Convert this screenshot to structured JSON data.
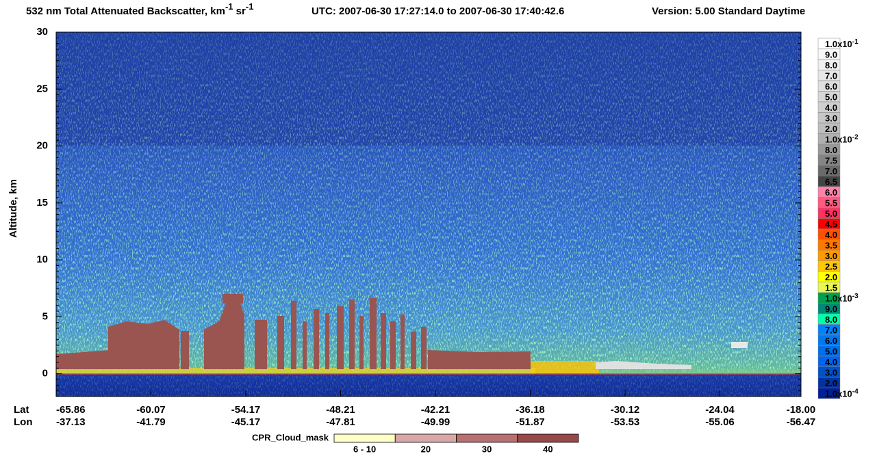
{
  "chart_data": {
    "type": "heatmap",
    "title_parts": [
      "532 nm Total Attenuated Backscatter, km",
      "-1",
      " sr",
      "-1",
      "UTC:  2007-06-30 17:27:14.0  to  2007-06-30 17:40:42.6",
      "Version: 5.00  Standard  Daytime"
    ],
    "y_label": "Altitude, km",
    "ylim": [
      -2,
      30
    ],
    "yticks": [
      0,
      5,
      10,
      15,
      20,
      25,
      30
    ],
    "x_rows": [
      {
        "name": "Lat",
        "labels": [
          "-65.86",
          "-60.07",
          "-54.17",
          "-48.21",
          "-42.21",
          "-36.18",
          "-30.12",
          "-24.04",
          "-18.00"
        ]
      },
      {
        "name": "Lon",
        "labels": [
          "-37.13",
          "-41.79",
          "-45.17",
          "-47.81",
          "-49.99",
          "-51.87",
          "-53.53",
          "-55.06",
          "-56.47"
        ]
      }
    ],
    "colorbar": [
      {
        "label": "1.0x10",
        "exp": "-1",
        "color": "#ffffff"
      },
      {
        "label": "9.0",
        "color": "#f7f7f7"
      },
      {
        "label": "8.0",
        "color": "#efefef"
      },
      {
        "label": "7.0",
        "color": "#e7e7e7"
      },
      {
        "label": "6.0",
        "color": "#dfdfdf"
      },
      {
        "label": "5.0",
        "color": "#d7d7d7"
      },
      {
        "label": "4.0",
        "color": "#cfcfcf"
      },
      {
        "label": "3.0",
        "color": "#c7c7c7"
      },
      {
        "label": "2.0",
        "color": "#bdbdbd"
      },
      {
        "label": "1.0x10",
        "exp": "-2",
        "color": "#b0b0b0"
      },
      {
        "label": "8.0",
        "color": "#9a9a9a"
      },
      {
        "label": "7.5",
        "color": "#858585"
      },
      {
        "label": "7.0",
        "color": "#6a6a6a"
      },
      {
        "label": "6.5",
        "color": "#444444"
      },
      {
        "label": "6.0",
        "color": "#ff82a8"
      },
      {
        "label": "5.5",
        "color": "#ff5a82"
      },
      {
        "label": "5.0",
        "color": "#ff3262"
      },
      {
        "label": "4.5",
        "color": "#ff0000"
      },
      {
        "label": "4.0",
        "color": "#ff5000"
      },
      {
        "label": "3.5",
        "color": "#ff7800"
      },
      {
        "label": "3.0",
        "color": "#ff9a00"
      },
      {
        "label": "2.5",
        "color": "#ffc800"
      },
      {
        "label": "2.0",
        "color": "#ffff00"
      },
      {
        "label": "1.5",
        "color": "#e8f850"
      },
      {
        "label": "1.0x10",
        "exp": "-3",
        "color": "#00a050"
      },
      {
        "label": "9.0",
        "color": "#008878"
      },
      {
        "label": "8.0",
        "color": "#00ffa8"
      },
      {
        "label": "7.0",
        "color": "#0082ff"
      },
      {
        "label": "6.0",
        "color": "#0078f0"
      },
      {
        "label": "5.0",
        "color": "#006ee6"
      },
      {
        "label": "4.0",
        "color": "#0064f0"
      },
      {
        "label": "3.0",
        "color": "#0050c8"
      },
      {
        "label": "2.0",
        "color": "#0032a0"
      },
      {
        "label": "1.0x10",
        "exp": "-4",
        "color": "#001e96"
      }
    ],
    "cloud_mask": {
      "title": "CPR_Cloud_mask",
      "items": [
        {
          "label": "6 - 10",
          "color": "#ffffc8"
        },
        {
          "label": "20",
          "color": "#d8a8a8"
        },
        {
          "label": "30",
          "color": "#b87070"
        },
        {
          "label": "40",
          "color": "#984848"
        }
      ]
    }
  }
}
